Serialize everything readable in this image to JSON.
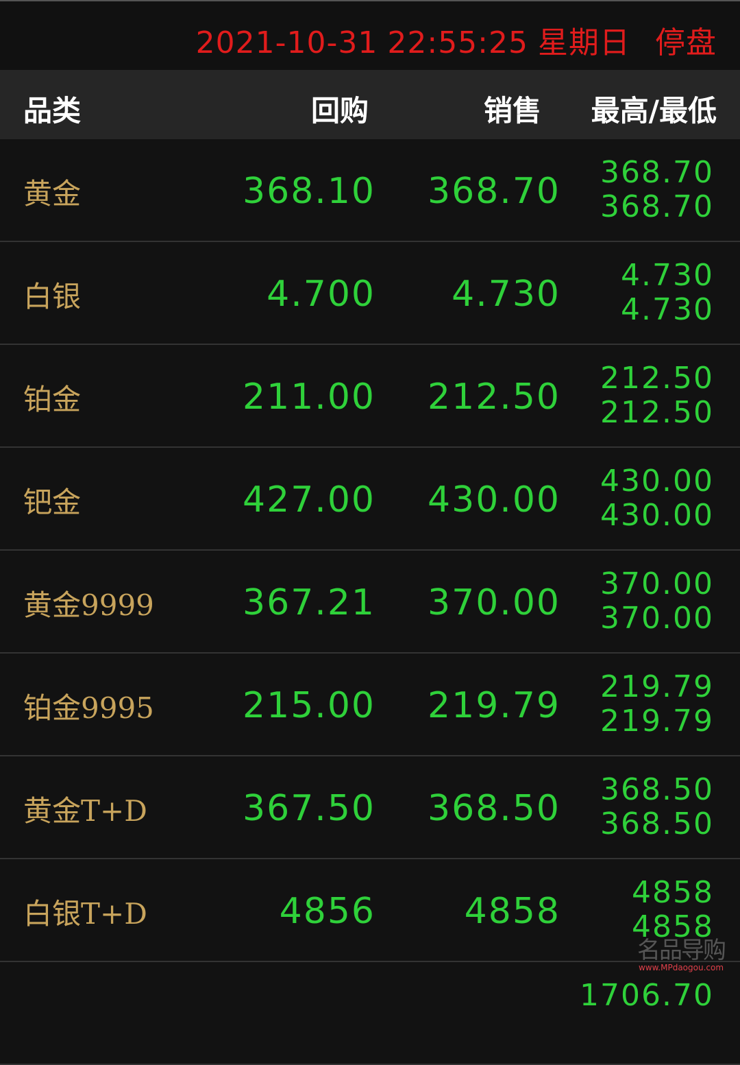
{
  "status_bar": {
    "date": "2021-10-31",
    "time": "22:55:25",
    "weekday": "星期日",
    "market_status": "停盘"
  },
  "columns": {
    "name": "品类",
    "buy": "回购",
    "sell": "销售",
    "high_low": "最高/最低"
  },
  "rows": [
    {
      "name": "黄金",
      "buy": "368.10",
      "sell": "368.70",
      "high": "368.70",
      "low": "368.70"
    },
    {
      "name": "白银",
      "buy": "4.700",
      "sell": "4.730",
      "high": "4.730",
      "low": "4.730"
    },
    {
      "name": "铂金",
      "buy": "211.00",
      "sell": "212.50",
      "high": "212.50",
      "low": "212.50"
    },
    {
      "name": "钯金",
      "buy": "427.00",
      "sell": "430.00",
      "high": "430.00",
      "low": "430.00"
    },
    {
      "name": "黄金9999",
      "buy": "367.21",
      "sell": "370.00",
      "high": "370.00",
      "low": "370.00"
    },
    {
      "name": "铂金9995",
      "buy": "215.00",
      "sell": "219.79",
      "high": "219.79",
      "low": "219.79"
    },
    {
      "name": "黄金T+D",
      "buy": "367.50",
      "sell": "368.50",
      "high": "368.50",
      "low": "368.50"
    },
    {
      "name": "白银T+D",
      "buy": "4856",
      "sell": "4858",
      "high": "4858",
      "low": "4858"
    },
    {
      "name": "",
      "buy": "",
      "sell": "",
      "high": "1706.70",
      "low": ""
    }
  ],
  "watermark": {
    "logo": "名品导购",
    "url": "www.MPdaogou.com"
  },
  "colors": {
    "datetime": "#e01c1c",
    "price": "#2fd13a",
    "name": "#c8a45c",
    "header_bg": "#262626",
    "bg": "#121212"
  }
}
